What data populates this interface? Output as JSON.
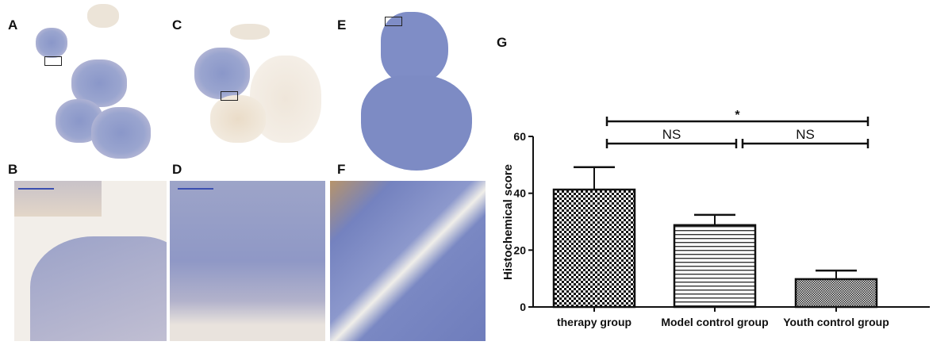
{
  "panels": {
    "a": "A",
    "b": "B",
    "c": "C",
    "d": "D",
    "e": "E",
    "f": "F",
    "g": "G"
  },
  "chart_data": {
    "type": "bar",
    "title": "",
    "xlabel": "",
    "ylabel": "Histochemical score",
    "ylim": [
      0,
      60
    ],
    "yticks": [
      "0",
      "20",
      "40",
      "60"
    ],
    "categories": [
      "therapy group",
      "Model control group",
      "Youth control group"
    ],
    "values": [
      41.3,
      28.8,
      9.8
    ],
    "error_upper": [
      49.2,
      32.4,
      12.8
    ],
    "patterns": [
      "checkerboard",
      "horizontal-lines",
      "fine-checkerboard"
    ],
    "grid": false,
    "annotations": [
      {
        "text": "*",
        "from": "therapy group",
        "to": "Youth control group"
      },
      {
        "text": "NS",
        "from": "therapy group",
        "to": "Model control group"
      },
      {
        "text": "NS",
        "from": "Model control group",
        "to": "Youth control group"
      }
    ]
  }
}
